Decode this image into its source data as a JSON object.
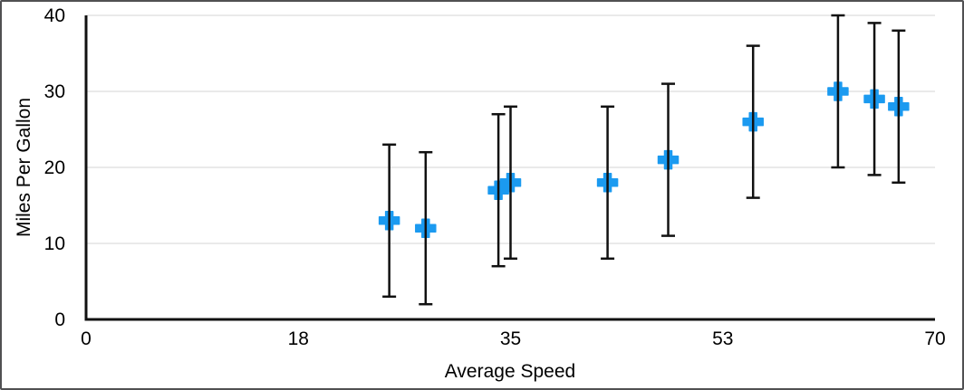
{
  "chart_data": {
    "type": "scatter",
    "title": "",
    "xlabel": "Average Speed",
    "ylabel": "Miles Per Gallon",
    "xlim": [
      0,
      70
    ],
    "ylim": [
      0,
      40
    ],
    "grid": "horizontal-only",
    "legend": "none",
    "x_ticks": [
      {
        "value": 0,
        "label": "0"
      },
      {
        "value": 17.5,
        "label": "18"
      },
      {
        "value": 35,
        "label": "35"
      },
      {
        "value": 52.5,
        "label": "53"
      },
      {
        "value": 70,
        "label": "70"
      }
    ],
    "y_ticks": [
      {
        "value": 0,
        "label": "0"
      },
      {
        "value": 10,
        "label": "10"
      },
      {
        "value": 20,
        "label": "20"
      },
      {
        "value": 30,
        "label": "30"
      },
      {
        "value": 40,
        "label": "40"
      }
    ],
    "series": [
      {
        "name": "Miles Per Gallon",
        "marker": "plus",
        "points": [
          {
            "x": 25,
            "y": 13,
            "error_y": 10
          },
          {
            "x": 28,
            "y": 12,
            "error_y": 10
          },
          {
            "x": 34,
            "y": 17,
            "error_y": 10
          },
          {
            "x": 35,
            "y": 18,
            "error_y": 10
          },
          {
            "x": 43,
            "y": 18,
            "error_y": 10
          },
          {
            "x": 48,
            "y": 21,
            "error_y": 10
          },
          {
            "x": 55,
            "y": 26,
            "error_y": 10
          },
          {
            "x": 62,
            "y": 30,
            "error_y": 10
          },
          {
            "x": 65,
            "y": 29,
            "error_y": 10
          },
          {
            "x": 67,
            "y": 28,
            "error_y": 10
          }
        ]
      }
    ],
    "colors": {
      "marker": "#1B9AF0",
      "error_bar": "#111111",
      "axis": "#111111",
      "gridline": "#E3E3E3",
      "text": "#000000"
    }
  }
}
